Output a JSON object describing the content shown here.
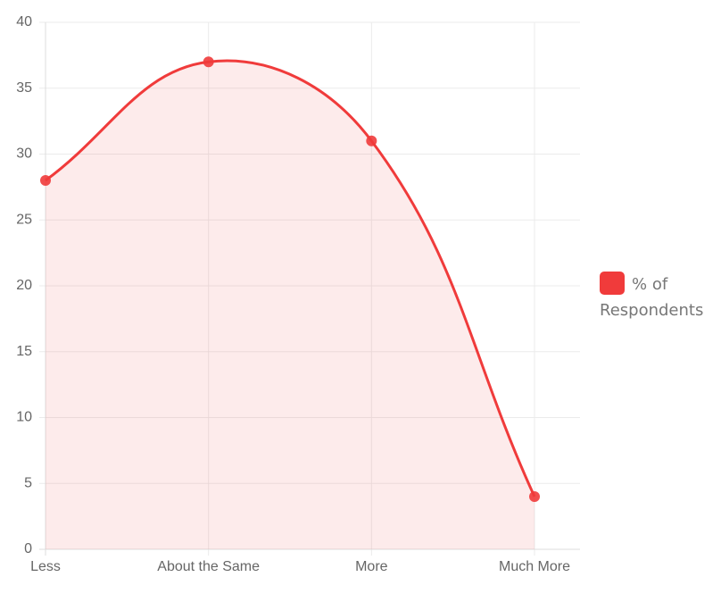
{
  "chart_data": {
    "type": "area",
    "categories": [
      "Less",
      "About the Same",
      "More",
      "Much More"
    ],
    "series": [
      {
        "name": "% of Respondents",
        "color": "#f03b3b",
        "values": [
          28,
          37,
          31,
          4
        ]
      }
    ],
    "ylim": [
      0,
      40
    ],
    "yticks": [
      0,
      5,
      10,
      15,
      20,
      25,
      30,
      35,
      40
    ],
    "grid": true,
    "legend": "right"
  }
}
